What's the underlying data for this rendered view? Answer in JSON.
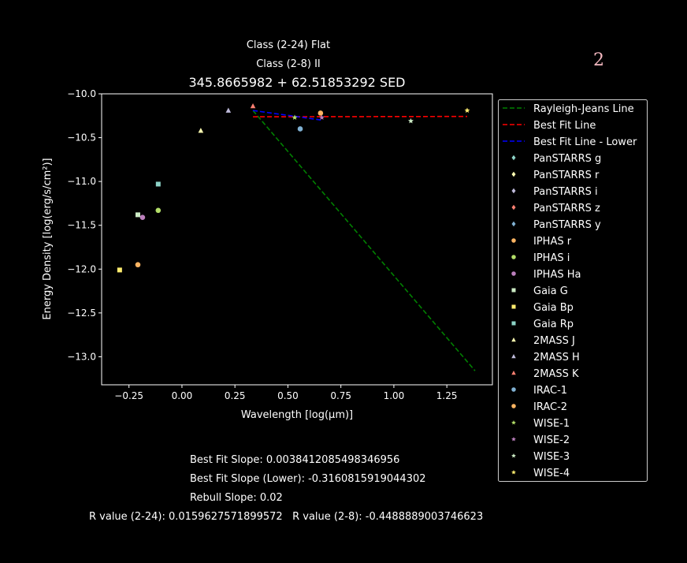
{
  "chart_data": {
    "type": "scatter",
    "title_lines": [
      "Class (2-24) Flat",
      "Class (2-8) II"
    ],
    "title": "345.8665982 + 62.51853292 SED",
    "xlabel": "Wavelength [log(μm)]",
    "ylabel": "Energy Density [log(erg/s/cm²)]",
    "xlim": [
      -0.379,
      1.465
    ],
    "ylim": [
      -13.32,
      -10.0
    ],
    "xticks": [
      -0.25,
      0.0,
      0.25,
      0.5,
      0.75,
      1.0,
      1.25
    ],
    "xtick_labels": [
      "−0.25",
      "0.00",
      "0.25",
      "0.50",
      "0.75",
      "1.00",
      "1.25"
    ],
    "yticks": [
      -10.0,
      -10.5,
      -11.0,
      -11.5,
      -12.0,
      -12.5,
      -13.0
    ],
    "ytick_labels": [
      "−10.0",
      "−10.5",
      "−11.0",
      "−11.5",
      "−12.0",
      "−12.5",
      "−13.0"
    ],
    "grid": false,
    "legend_placement": "outside-right",
    "lines": [
      {
        "name": "Rayleigh-Jeans Line",
        "color": "#008000",
        "x": [
          0.335,
          1.383
        ],
        "y": [
          -10.19,
          -13.16
        ]
      },
      {
        "name": "Best Fit Line",
        "color": "#ff0000",
        "x": [
          0.335,
          1.346
        ],
        "y": [
          -10.262,
          -10.258
        ]
      },
      {
        "name": "Best Fit Line - Lower",
        "color": "#0000ff",
        "x": [
          0.335,
          0.66
        ],
        "y": [
          -10.19,
          -10.3
        ]
      }
    ],
    "series": [
      {
        "name": "PanSTARRS g",
        "marker": "diamond",
        "color": "#8dd3c7",
        "x": [],
        "y": []
      },
      {
        "name": "PanSTARRS r",
        "marker": "diamond",
        "color": "#ffffb3",
        "x": [],
        "y": []
      },
      {
        "name": "PanSTARRS i",
        "marker": "diamond",
        "color": "#bebada",
        "x": [],
        "y": []
      },
      {
        "name": "PanSTARRS z",
        "marker": "diamond",
        "color": "#fb8072",
        "x": [],
        "y": []
      },
      {
        "name": "PanSTARRS y",
        "marker": "diamond",
        "color": "#80b1d3",
        "x": [],
        "y": []
      },
      {
        "name": "IPHAS r",
        "marker": "circle",
        "color": "#fdb462",
        "x": [
          -0.208
        ],
        "y": [
          -11.95
        ]
      },
      {
        "name": "IPHAS i",
        "marker": "circle",
        "color": "#b3de69",
        "x": [
          -0.112
        ],
        "y": [
          -11.33
        ]
      },
      {
        "name": "IPHAS Ha",
        "marker": "circle",
        "color": "#bc80bd",
        "x": [
          -0.186
        ],
        "y": [
          -11.41
        ]
      },
      {
        "name": "Gaia G",
        "marker": "square",
        "color": "#ccebc5",
        "x": [
          -0.208
        ],
        "y": [
          -11.38
        ]
      },
      {
        "name": "Gaia Bp",
        "marker": "square",
        "color": "#ffed6f",
        "x": [
          -0.294
        ],
        "y": [
          -12.01
        ]
      },
      {
        "name": "Gaia Rp",
        "marker": "square",
        "color": "#8dd3c7",
        "x": [
          -0.112
        ],
        "y": [
          -11.03
        ]
      },
      {
        "name": "2MASS J",
        "marker": "triangle",
        "color": "#ffffb3",
        "x": [
          0.089
        ],
        "y": [
          -10.42
        ]
      },
      {
        "name": "2MASS H",
        "marker": "triangle",
        "color": "#bebada",
        "x": [
          0.219
        ],
        "y": [
          -10.19
        ]
      },
      {
        "name": "2MASS K",
        "marker": "triangle",
        "color": "#fb8072",
        "x": [
          0.335
        ],
        "y": [
          -10.14
        ]
      },
      {
        "name": "IRAC-1",
        "marker": "circle",
        "color": "#80b1d3",
        "x": [
          0.558
        ],
        "y": [
          -10.4
        ]
      },
      {
        "name": "IRAC-2",
        "marker": "circle",
        "color": "#fdb462",
        "x": [
          0.654
        ],
        "y": [
          -10.22
        ]
      },
      {
        "name": "WISE-1",
        "marker": "star",
        "color": "#b3de69",
        "x": [
          0.532
        ],
        "y": [
          -10.27
        ]
      },
      {
        "name": "WISE-2",
        "marker": "star",
        "color": "#bc80bd",
        "x": [
          0.66
        ],
        "y": [
          -10.27
        ]
      },
      {
        "name": "WISE-3",
        "marker": "star",
        "color": "#ccebc5",
        "x": [
          1.08
        ],
        "y": [
          -10.31
        ]
      },
      {
        "name": "WISE-4",
        "marker": "star",
        "color": "#ffed6f",
        "x": [
          1.346
        ],
        "y": [
          -10.19
        ]
      }
    ]
  },
  "footer": {
    "best_fit_slope": "Best Fit Slope: 0.0038412085498346956",
    "best_fit_slope_lower": "Best Fit Slope (Lower): -0.3160815919044302",
    "rebull_slope": "Rebull Slope: 0.02",
    "r_values": "R value (2-24): 0.0159627571899572   R value (2-8): -0.4488889003746623"
  },
  "corner_label": "2"
}
